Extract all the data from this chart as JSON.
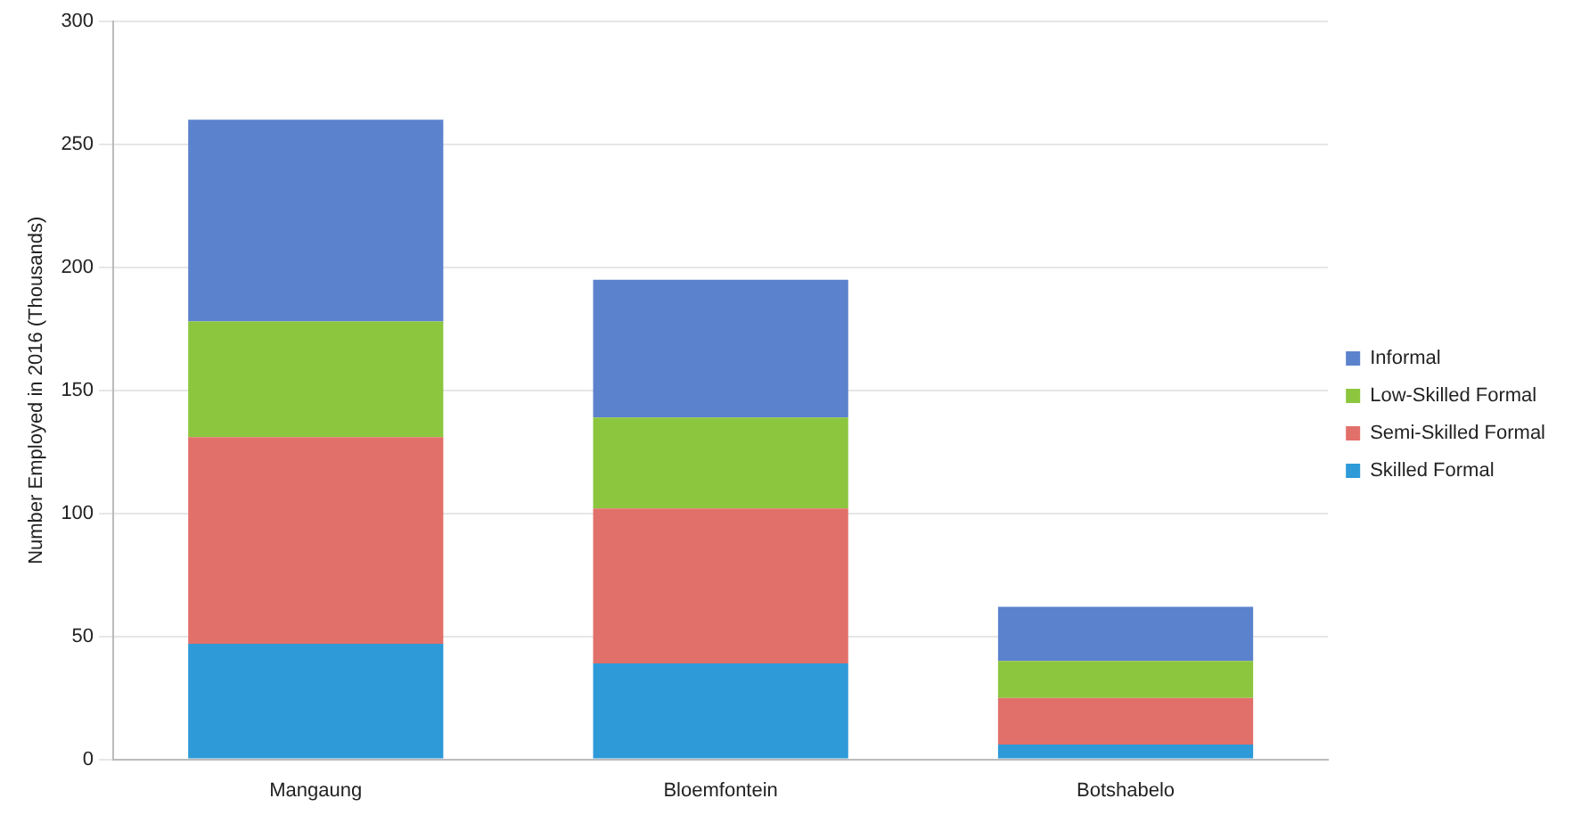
{
  "chart_data": {
    "type": "bar",
    "stacked": true,
    "ylabel": "Number Employed in 2016 (Thousands)",
    "categories": [
      "Mangaung",
      "Bloemfontein",
      "Botshabelo"
    ],
    "series": [
      {
        "name": "Skilled Formal",
        "color": "#2e9ad8",
        "values": [
          47,
          39,
          6
        ]
      },
      {
        "name": "Semi-Skilled Formal",
        "color": "#e2706a",
        "values": [
          84,
          63,
          19
        ]
      },
      {
        "name": "Low-Skilled Formal",
        "color": "#8cc63f",
        "values": [
          47,
          37,
          15
        ]
      },
      {
        "name": "Informal",
        "color": "#5b82cc",
        "values": [
          82,
          56,
          22
        ]
      }
    ],
    "ylim": [
      0,
      300
    ],
    "yticks": [
      0,
      50,
      100,
      150,
      200,
      250,
      300
    ],
    "grid": "y",
    "legend": "right"
  }
}
